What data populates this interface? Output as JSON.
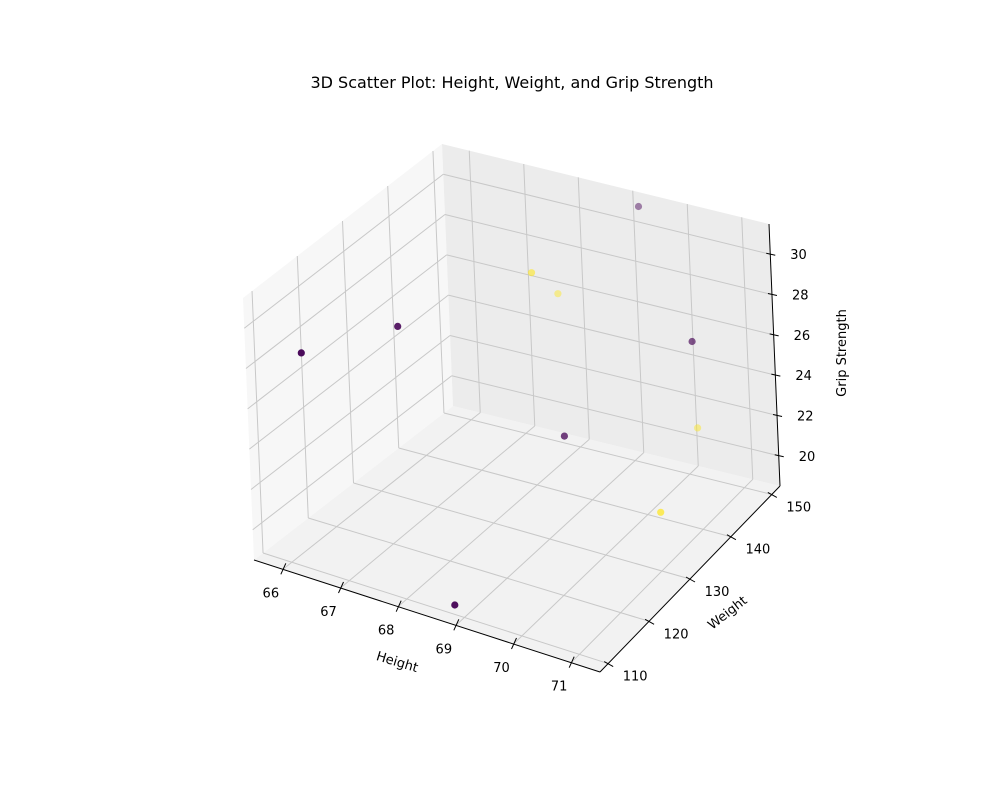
{
  "chart_data": {
    "type": "scatter",
    "projection": "3d",
    "title": "3D Scatter Plot: Height, Weight, and Grip Strength",
    "xlabel": "Height",
    "ylabel": "Weight",
    "zlabel": "Grip Strength",
    "x_ticks": [
      "66",
      "67",
      "68",
      "69",
      "70",
      "71"
    ],
    "y_ticks": [
      "110",
      "120",
      "130",
      "140",
      "150"
    ],
    "z_ticks": [
      "20",
      "22",
      "24",
      "26",
      "28",
      "30"
    ],
    "xlim": [
      65.5,
      71.5
    ],
    "ylim": [
      108,
      152
    ],
    "zlim": [
      18.5,
      31.5
    ],
    "grid": true,
    "colormap": "viridis",
    "colors": {
      "purple": "#440154",
      "yellow": "#fde725"
    },
    "points": [
      {
        "x": 66.2,
        "y": 111.5,
        "z": 28.8,
        "group": "purple"
      },
      {
        "x": 67.4,
        "y": 118.0,
        "z": 30.0,
        "group": "purple"
      },
      {
        "x": 69.5,
        "y": 128.0,
        "z": 24.4,
        "group": "purple"
      },
      {
        "x": 68.7,
        "y": 111.8,
        "z": 18.5,
        "group": "purple"
      },
      {
        "x": 71.3,
        "y": 135.4,
        "z": 29.0,
        "group": "purple"
      },
      {
        "x": 69.2,
        "y": 150.7,
        "z": 31.1,
        "group": "purple"
      },
      {
        "x": 68.1,
        "y": 139.5,
        "z": 29.2,
        "group": "yellow"
      },
      {
        "x": 67.7,
        "y": 150.0,
        "z": 25.9,
        "group": "yellow"
      },
      {
        "x": 70.3,
        "y": 148.5,
        "z": 21.3,
        "group": "yellow"
      },
      {
        "x": 71.1,
        "y": 129.0,
        "z": 21.7,
        "group": "yellow"
      }
    ]
  }
}
